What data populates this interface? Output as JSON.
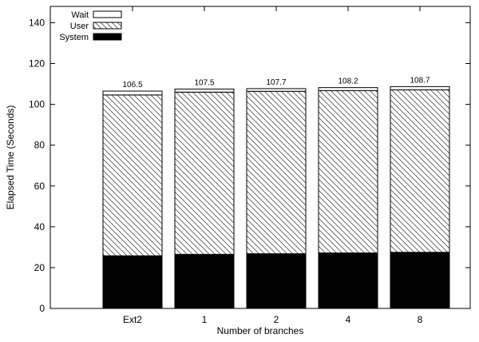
{
  "chart_data": {
    "type": "bar",
    "stacked": true,
    "xlabel": "Number of branches",
    "ylabel": "Elapsed Time (Seconds)",
    "ylim": [
      0,
      148
    ],
    "yticks": [
      0,
      20,
      40,
      60,
      80,
      100,
      120,
      140
    ],
    "categories": [
      "Ext2",
      "1",
      "2",
      "4",
      "8"
    ],
    "series": [
      {
        "name": "System",
        "values": [
          25.8,
          26.5,
          26.8,
          27.2,
          27.5
        ]
      },
      {
        "name": "User",
        "values": [
          78.8,
          79.5,
          79.6,
          79.5,
          79.6
        ]
      },
      {
        "name": "Wait",
        "values": [
          1.9,
          1.5,
          1.3,
          1.5,
          1.6
        ]
      }
    ],
    "totals": [
      "106.5",
      "107.5",
      "107.7",
      "108.2",
      "108.7"
    ],
    "legend_position": "top-left",
    "legend_order": [
      "Wait",
      "User",
      "System"
    ],
    "colors": {
      "system": "#000000",
      "user": "#ffffff",
      "wait": "#ffffff",
      "axis": "#000000"
    },
    "grid": false
  }
}
